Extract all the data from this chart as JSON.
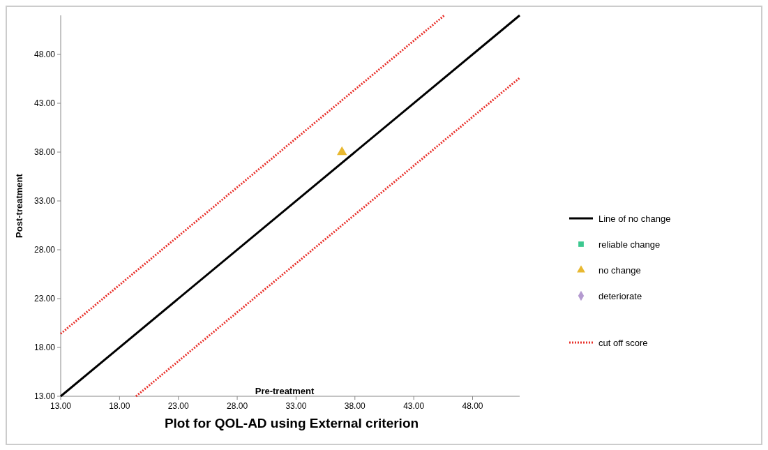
{
  "chart_data": {
    "type": "scatter",
    "title": "Plot for QOL-AD using External criterion",
    "xlabel": "Pre-treatment",
    "ylabel": "Post-treatment",
    "xlim": [
      13,
      52
    ],
    "ylim": [
      13,
      52
    ],
    "xticks": [
      {
        "value": 13,
        "label": "13.00"
      },
      {
        "value": 18,
        "label": "18.00"
      },
      {
        "value": 23,
        "label": "23.00"
      },
      {
        "value": 28,
        "label": "28.00"
      },
      {
        "value": 33,
        "label": "33.00"
      },
      {
        "value": 38,
        "label": "38.00"
      },
      {
        "value": 43,
        "label": "43.00"
      },
      {
        "value": 48,
        "label": "48.00"
      }
    ],
    "yticks": [
      {
        "value": 13,
        "label": "13.00"
      },
      {
        "value": 18,
        "label": "18.00"
      },
      {
        "value": 23,
        "label": "23.00"
      },
      {
        "value": 28,
        "label": "28.00"
      },
      {
        "value": 33,
        "label": "33.00"
      },
      {
        "value": 38,
        "label": "38.00"
      },
      {
        "value": 43,
        "label": "43.00"
      },
      {
        "value": 48,
        "label": "48.00"
      }
    ],
    "grid": false,
    "legend": "right",
    "series": [
      {
        "name": "Line of no change",
        "type": "line",
        "color": "#000000",
        "line_style": "solid",
        "marker": "none",
        "x": [
          13,
          52
        ],
        "values": [
          13,
          52
        ]
      },
      {
        "name": "reliable change",
        "color": "#3cc890",
        "marker": "square"
      },
      {
        "name": "no change",
        "color": "#e8b830",
        "marker": "triangle",
        "x": [
          36.9
        ],
        "values": [
          38
        ]
      },
      {
        "name": "deteriorate",
        "color": "#b49ad0",
        "marker": "diamond"
      },
      {
        "name": "cut off score",
        "type": "line",
        "color": "#e8302a",
        "line_style": "dotted",
        "marker": "none",
        "x": [
          13,
          45.6
        ],
        "values": [
          19.4,
          52
        ]
      },
      {
        "type": "line",
        "color": "#e8302a",
        "line_style": "dotted",
        "marker": "none",
        "x": [
          19.4,
          52
        ],
        "values": [
          13,
          45.6
        ]
      }
    ]
  }
}
